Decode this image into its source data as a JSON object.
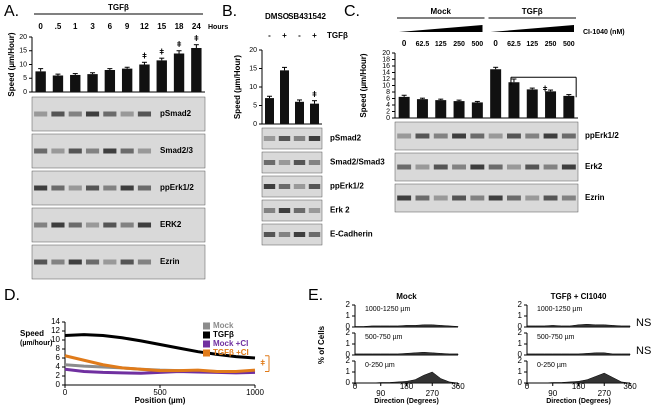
{
  "chart_data": [
    {
      "type": "bar",
      "label": "A.",
      "ylabel": "Speed (µm/Hour)",
      "category_title": "Hours",
      "color": "#111111",
      "ylim": [
        0,
        20
      ],
      "yticks": [
        0,
        5,
        10,
        15,
        20
      ],
      "groups": [
        {
          "name": "TGFβ",
          "categories": [
            "0",
            ".5",
            "1",
            "3",
            "6",
            "9",
            "12",
            "15",
            "18",
            "24"
          ],
          "values": [
            7.5,
            6,
            6.2,
            6.5,
            8,
            8.5,
            10,
            11.5,
            14,
            16
          ],
          "errors": [
            1,
            0.5,
            0.5,
            0.5,
            0.5,
            0.5,
            0.8,
            0.8,
            1,
            1.2
          ],
          "marks": [
            null,
            null,
            null,
            null,
            null,
            null,
            "ǂ",
            "ǂ",
            "ǂ",
            "ǂ"
          ]
        }
      ],
      "blots": [
        "pSmad2",
        "Smad2/3",
        "ppErk1/2",
        "ERK2",
        "Ezrin"
      ]
    },
    {
      "type": "bar",
      "label": "B.",
      "ylabel": "Speed (µm/Hour)",
      "treatment_label": "TGFβ",
      "color": "#111111",
      "ylim": [
        0,
        20
      ],
      "yticks": [
        0,
        5,
        10,
        15,
        20
      ],
      "groups": [
        {
          "name": "DMSO",
          "categories": [
            "-",
            "+"
          ],
          "values": [
            7,
            14.5
          ],
          "errors": [
            0.5,
            0.8
          ],
          "marks": [
            null,
            null
          ]
        },
        {
          "name": "SB431542",
          "categories": [
            "-",
            "+"
          ],
          "values": [
            6,
            5.5
          ],
          "errors": [
            0.5,
            0.8
          ],
          "marks": [
            null,
            "ǂ"
          ]
        }
      ],
      "blots": [
        "pSmad2",
        "Smad2/Smad3",
        "ppErk1/2",
        "Erk 2",
        "E-Cadherin"
      ]
    },
    {
      "type": "bar",
      "label": "C.",
      "ylabel": "Speed (µm/Hour)",
      "category_title": "CI-1040 (nM)",
      "color": "#111111",
      "ylim": [
        0,
        20
      ],
      "yticks": [
        0,
        2,
        4,
        6,
        8,
        10,
        12,
        14,
        16,
        18,
        20
      ],
      "groups": [
        {
          "name": "Mock",
          "categories": [
            "0",
            "62.5",
            "125",
            "250",
            "500"
          ],
          "values": [
            6.5,
            5.8,
            5.5,
            5.2,
            4.8
          ],
          "errors": [
            0.5,
            0.3,
            0.3,
            0.3,
            0.3
          ]
        },
        {
          "name": "TGFβ",
          "categories": [
            "0",
            "62.5",
            "125",
            "250",
            "500"
          ],
          "values": [
            15,
            11,
            8.8,
            8.2,
            6.8
          ],
          "errors": [
            0.6,
            1,
            0.4,
            0.4,
            0.4
          ],
          "bracket_label": "ǂ"
        }
      ],
      "blots": [
        "ppErk1/2",
        "Erk2",
        "Ezrin"
      ]
    },
    {
      "type": "line",
      "label": "D.",
      "ylabel": "Speed",
      "ylabel_unit": "(µm/hour)",
      "xlabel": "Position (µm)",
      "annotation": "ǂ",
      "legend": "upper right",
      "x": [
        0,
        100,
        200,
        300,
        400,
        500,
        600,
        700,
        800,
        900,
        1000
      ],
      "xlim": [
        0,
        1000
      ],
      "xticks": [
        0,
        500,
        1000
      ],
      "ylim": [
        0,
        14
      ],
      "yticks": [
        0,
        2,
        4,
        6,
        8,
        10,
        12,
        14
      ],
      "series": [
        {
          "name": "Mock",
          "color": "#8c8c8c",
          "values": [
            4.5,
            4.2,
            4,
            3.8,
            3.5,
            3.3,
            3.2,
            3.1,
            3,
            3,
            3
          ]
        },
        {
          "name": "TGFβ",
          "color": "#000000",
          "values": [
            11,
            11.2,
            11,
            10.5,
            9.8,
            9,
            8.2,
            7.4,
            6.8,
            6.3,
            6
          ]
        },
        {
          "name": "Mock +CI",
          "color": "#7030a0",
          "values": [
            3.5,
            3,
            2.8,
            2.7,
            2.6,
            2.8,
            3,
            2.9,
            2.8,
            2.7,
            2.8
          ]
        },
        {
          "name": "TGFβ +CI",
          "color": "#e07b1a",
          "values": [
            6.5,
            5.5,
            4.5,
            3.8,
            3.5,
            3.2,
            3.2,
            3.3,
            3,
            3,
            3.3
          ]
        }
      ]
    },
    {
      "type": "area",
      "label": "E.",
      "ylabel": "% of Cells",
      "xlabel": "Direction (Degrees)",
      "color": "#333333",
      "x": [
        0,
        30,
        60,
        90,
        120,
        150,
        180,
        210,
        240,
        270,
        300,
        330,
        360
      ],
      "xlim": [
        0,
        360
      ],
      "xticks": [
        0,
        90,
        180,
        270,
        360
      ],
      "ylim": [
        0,
        2
      ],
      "yticks": [
        0,
        1,
        2
      ],
      "columns": [
        {
          "title": "Mock",
          "rows": [
            {
              "label": "1000-1250 µm",
              "values": [
                0.05,
                0.05,
                0.1,
                0.1,
                0.1,
                0.1,
                0.15,
                0.15,
                0.2,
                0.2,
                0.15,
                0.1,
                0.05
              ]
            },
            {
              "label": "500-750 µm",
              "values": [
                0.1,
                0.1,
                0.1,
                0.1,
                0.1,
                0.1,
                0.15,
                0.2,
                0.25,
                0.2,
                0.15,
                0.1,
                0.1
              ]
            },
            {
              "label": "0-250 µm",
              "values": [
                0,
                0,
                0,
                0.05,
                0.05,
                0.1,
                0.15,
                0.3,
                0.7,
                1,
                0.4,
                0.1,
                0
              ]
            }
          ]
        },
        {
          "title": "TGFβ + CI1040",
          "rows": [
            {
              "label": "1000-1250 µm",
              "values": [
                0.1,
                0.1,
                0.1,
                0.15,
                0.1,
                0.1,
                0.2,
                0.25,
                0.2,
                0.2,
                0.15,
                0.1,
                0.1
              ],
              "annotation": "NS"
            },
            {
              "label": "500-750 µm",
              "values": [
                0.1,
                0.1,
                0.1,
                0.1,
                0.1,
                0.1,
                0.1,
                0.15,
                0.2,
                0.2,
                0.1,
                0.1,
                0.1
              ],
              "annotation": "NS"
            },
            {
              "label": "0-250 µm",
              "values": [
                0,
                0,
                0,
                0.05,
                0.05,
                0.1,
                0.15,
                0.3,
                0.6,
                0.9,
                0.5,
                0.1,
                0
              ]
            }
          ]
        }
      ]
    }
  ]
}
